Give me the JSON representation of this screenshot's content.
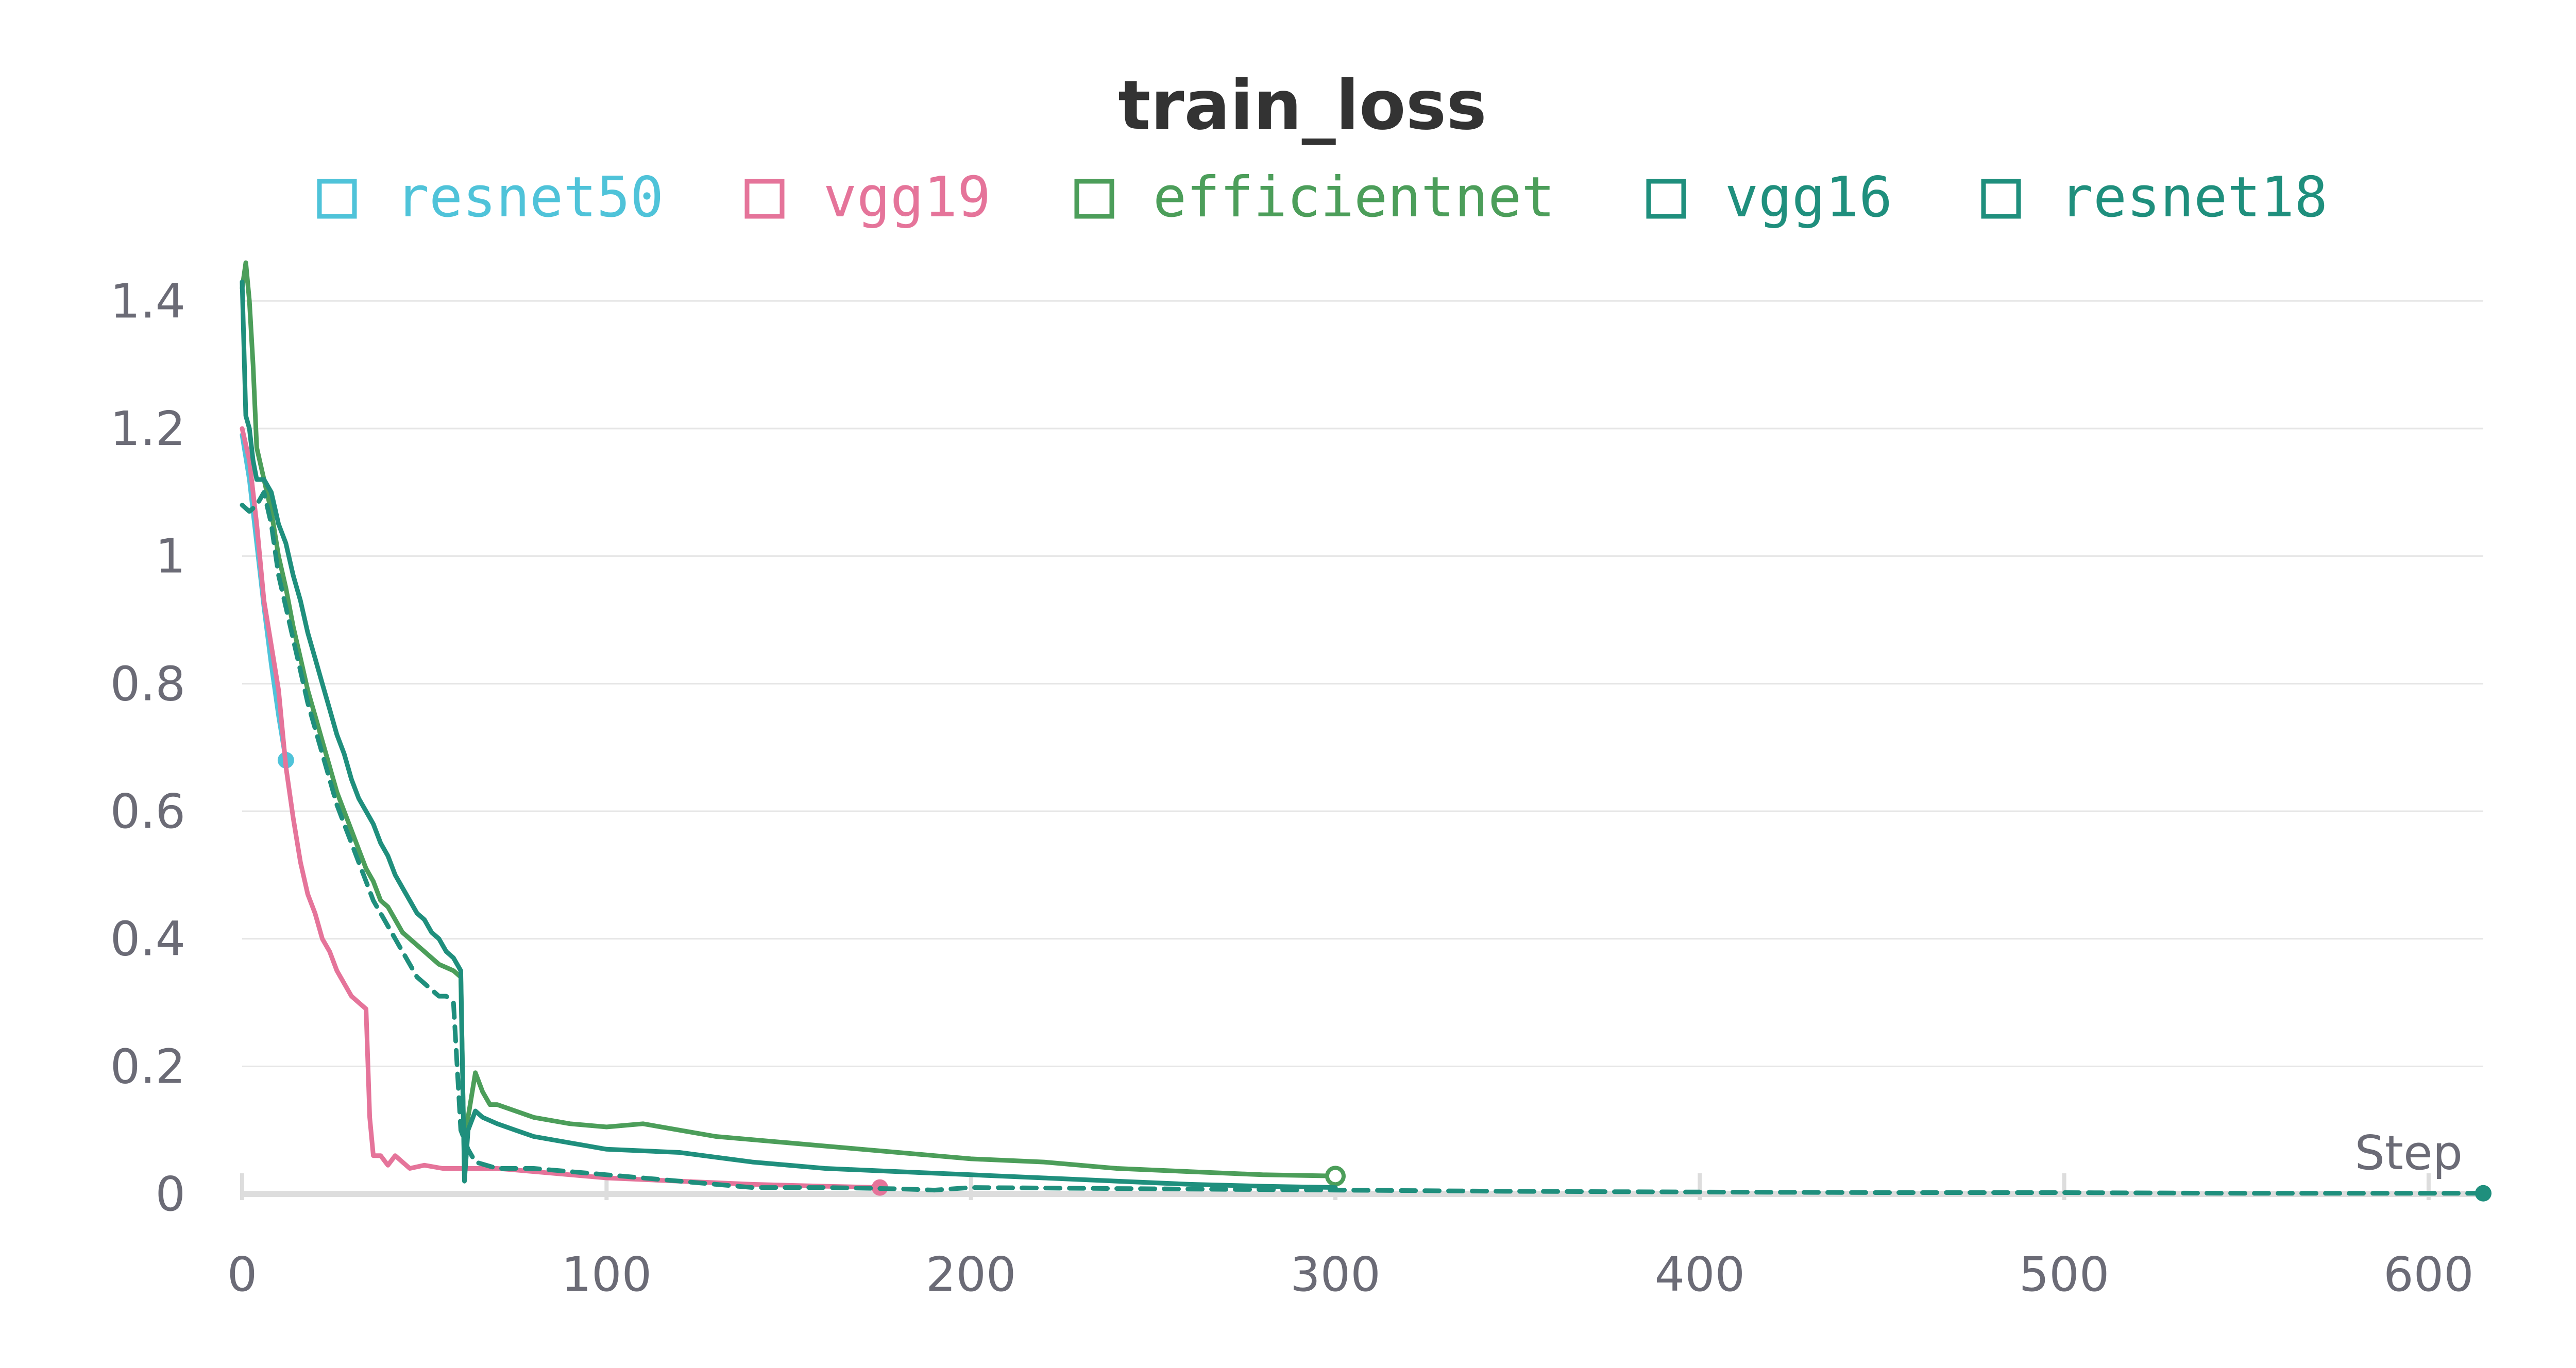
{
  "chart_data": {
    "type": "line",
    "title": "train_loss",
    "xlabel": "Step",
    "ylabel": "",
    "xlim": [
      0,
      615
    ],
    "ylim": [
      0,
      1.46
    ],
    "x_ticks": [
      0,
      100,
      200,
      300,
      400,
      500,
      600
    ],
    "y_ticks": [
      0,
      0.2,
      0.4,
      0.6,
      0.8,
      1,
      1.2,
      1.4
    ],
    "x_tick_labels": [
      "0",
      "100",
      "200",
      "300",
      "400",
      "500",
      "600"
    ],
    "y_tick_labels": [
      "0",
      "0.2",
      "0.4",
      "0.6",
      "0.8",
      "1",
      "1.2",
      "1.4"
    ],
    "grid": true,
    "legend_position": "top",
    "series": [
      {
        "name": "resnet50",
        "color": "#4fc3d9",
        "dash": false,
        "marker": "dot",
        "x": [
          0,
          2,
          4,
          6,
          8,
          10,
          12
        ],
        "y": [
          1.19,
          1.12,
          1.02,
          0.92,
          0.83,
          0.75,
          0.68
        ]
      },
      {
        "name": "vgg19",
        "color": "#e5749a",
        "dash": false,
        "marker": "dot",
        "x": [
          0,
          2,
          4,
          6,
          8,
          10,
          12,
          14,
          16,
          18,
          20,
          22,
          24,
          26,
          28,
          30,
          32,
          34,
          35,
          36,
          38,
          40,
          42,
          44,
          46,
          50,
          55,
          60,
          70,
          80,
          100,
          120,
          140,
          160,
          175
        ],
        "y": [
          1.2,
          1.15,
          1.05,
          0.93,
          0.86,
          0.79,
          0.67,
          0.59,
          0.52,
          0.47,
          0.44,
          0.4,
          0.38,
          0.35,
          0.33,
          0.31,
          0.3,
          0.29,
          0.12,
          0.06,
          0.06,
          0.045,
          0.06,
          0.05,
          0.04,
          0.045,
          0.04,
          0.04,
          0.04,
          0.035,
          0.025,
          0.02,
          0.015,
          0.012,
          0.01
        ]
      },
      {
        "name": "efficientnet",
        "color": "#4c9e5a",
        "dash": false,
        "marker": "ring",
        "x": [
          0,
          1,
          2,
          3,
          4,
          6,
          8,
          10,
          12,
          14,
          16,
          18,
          20,
          22,
          24,
          26,
          28,
          30,
          32,
          34,
          36,
          38,
          40,
          42,
          44,
          46,
          48,
          50,
          52,
          54,
          56,
          58,
          60,
          61,
          62,
          64,
          66,
          68,
          70,
          75,
          80,
          90,
          100,
          110,
          120,
          130,
          140,
          150,
          160,
          170,
          180,
          190,
          200,
          220,
          240,
          260,
          280,
          300
        ],
        "y": [
          1.42,
          1.46,
          1.4,
          1.3,
          1.17,
          1.12,
          1.07,
          1.0,
          0.95,
          0.89,
          0.84,
          0.79,
          0.75,
          0.71,
          0.67,
          0.63,
          0.6,
          0.57,
          0.54,
          0.51,
          0.49,
          0.46,
          0.45,
          0.43,
          0.41,
          0.4,
          0.39,
          0.38,
          0.37,
          0.36,
          0.355,
          0.35,
          0.34,
          0.03,
          0.12,
          0.19,
          0.16,
          0.14,
          0.14,
          0.13,
          0.12,
          0.11,
          0.105,
          0.11,
          0.1,
          0.09,
          0.085,
          0.08,
          0.075,
          0.07,
          0.065,
          0.06,
          0.055,
          0.05,
          0.04,
          0.035,
          0.03,
          0.028
        ]
      },
      {
        "name": "vgg16",
        "color": "#1f8f7d",
        "dash": false,
        "marker": "none",
        "x": [
          0,
          1,
          2,
          3,
          4,
          6,
          8,
          10,
          12,
          14,
          16,
          18,
          20,
          22,
          24,
          26,
          28,
          30,
          32,
          34,
          36,
          38,
          40,
          42,
          44,
          46,
          48,
          50,
          52,
          54,
          56,
          58,
          60,
          61,
          62,
          64,
          66,
          70,
          75,
          80,
          90,
          100,
          120,
          140,
          160,
          180,
          200,
          220,
          240,
          260,
          280,
          300
        ],
        "y": [
          1.43,
          1.22,
          1.2,
          1.15,
          1.12,
          1.12,
          1.1,
          1.05,
          1.02,
          0.97,
          0.93,
          0.88,
          0.84,
          0.8,
          0.76,
          0.72,
          0.69,
          0.65,
          0.62,
          0.6,
          0.58,
          0.55,
          0.53,
          0.5,
          0.48,
          0.46,
          0.44,
          0.43,
          0.41,
          0.4,
          0.38,
          0.37,
          0.35,
          0.02,
          0.1,
          0.13,
          0.12,
          0.11,
          0.1,
          0.09,
          0.08,
          0.07,
          0.065,
          0.05,
          0.04,
          0.035,
          0.03,
          0.025,
          0.02,
          0.015,
          0.012,
          0.01
        ]
      },
      {
        "name": "resnet18",
        "color": "#1f8f7d",
        "dash": true,
        "marker": "dot",
        "x": [
          0,
          2,
          4,
          6,
          8,
          10,
          12,
          14,
          16,
          18,
          20,
          22,
          24,
          26,
          28,
          30,
          32,
          34,
          36,
          38,
          40,
          42,
          44,
          46,
          48,
          50,
          52,
          54,
          56,
          58,
          60,
          62,
          64,
          70,
          80,
          100,
          120,
          140,
          160,
          180,
          190,
          200,
          250,
          300,
          350,
          400,
          450,
          500,
          550,
          600,
          615
        ],
        "y": [
          1.08,
          1.07,
          1.08,
          1.1,
          1.05,
          0.97,
          0.92,
          0.87,
          0.82,
          0.77,
          0.73,
          0.69,
          0.65,
          0.61,
          0.58,
          0.55,
          0.52,
          0.49,
          0.46,
          0.44,
          0.42,
          0.4,
          0.38,
          0.36,
          0.34,
          0.33,
          0.32,
          0.31,
          0.31,
          0.3,
          0.1,
          0.07,
          0.05,
          0.04,
          0.04,
          0.03,
          0.02,
          0.01,
          0.01,
          0.008,
          0.006,
          0.01,
          0.008,
          0.006,
          0.004,
          0.003,
          0.002,
          0.002,
          0.001,
          0.001,
          0.001
        ]
      }
    ]
  }
}
